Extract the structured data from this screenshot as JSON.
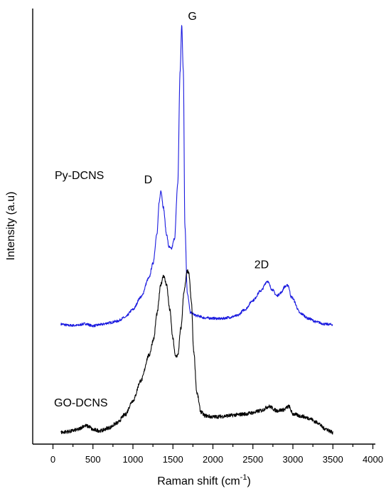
{
  "chart_data": {
    "type": "line",
    "title": "",
    "xlabel": "Raman shift (cm",
    "xlabel_superscript": "-1",
    "xlabel_suffix": ")",
    "ylabel": "Intensity (a.u)",
    "xlim": [
      -250,
      4000
    ],
    "x_ticks": [
      "0",
      "500",
      "1000",
      "1500",
      "2000",
      "2500",
      "3000",
      "3500",
      "4000"
    ],
    "y_ticks_shown": false,
    "grid": false,
    "legend": "none",
    "series": [
      {
        "name": "Py-DCNS",
        "color": "#1a1adf",
        "points": [
          [
            100,
            0.265
          ],
          [
            200,
            0.262
          ],
          [
            300,
            0.262
          ],
          [
            400,
            0.266
          ],
          [
            500,
            0.261
          ],
          [
            600,
            0.264
          ],
          [
            700,
            0.268
          ],
          [
            800,
            0.272
          ],
          [
            900,
            0.281
          ],
          [
            1000,
            0.3
          ],
          [
            1100,
            0.33
          ],
          [
            1200,
            0.375
          ],
          [
            1250,
            0.41
          ],
          [
            1300,
            0.48
          ],
          [
            1330,
            0.56
          ],
          [
            1350,
            0.585
          ],
          [
            1380,
            0.545
          ],
          [
            1420,
            0.48
          ],
          [
            1450,
            0.45
          ],
          [
            1480,
            0.445
          ],
          [
            1520,
            0.47
          ],
          [
            1560,
            0.6
          ],
          [
            1590,
            0.87
          ],
          [
            1610,
            0.98
          ],
          [
            1630,
            0.87
          ],
          [
            1650,
            0.5
          ],
          [
            1680,
            0.34
          ],
          [
            1720,
            0.292
          ],
          [
            1800,
            0.285
          ],
          [
            1900,
            0.28
          ],
          [
            2000,
            0.279
          ],
          [
            2100,
            0.278
          ],
          [
            2200,
            0.281
          ],
          [
            2300,
            0.285
          ],
          [
            2400,
            0.3
          ],
          [
            2500,
            0.322
          ],
          [
            2600,
            0.345
          ],
          [
            2680,
            0.368
          ],
          [
            2740,
            0.348
          ],
          [
            2800,
            0.333
          ],
          [
            2850,
            0.34
          ],
          [
            2900,
            0.355
          ],
          [
            2940,
            0.358
          ],
          [
            2980,
            0.33
          ],
          [
            3100,
            0.29
          ],
          [
            3200,
            0.278
          ],
          [
            3300,
            0.27
          ],
          [
            3400,
            0.265
          ],
          [
            3500,
            0.264
          ]
        ]
      },
      {
        "name": "GO-DCNS",
        "color": "#000000",
        "points": [
          [
            100,
            0.006
          ],
          [
            200,
            0.008
          ],
          [
            300,
            0.012
          ],
          [
            400,
            0.022
          ],
          [
            450,
            0.02
          ],
          [
            500,
            0.012
          ],
          [
            600,
            0.01
          ],
          [
            700,
            0.017
          ],
          [
            800,
            0.028
          ],
          [
            900,
            0.048
          ],
          [
            1000,
            0.082
          ],
          [
            1100,
            0.13
          ],
          [
            1200,
            0.19
          ],
          [
            1260,
            0.23
          ],
          [
            1300,
            0.29
          ],
          [
            1350,
            0.36
          ],
          [
            1380,
            0.382
          ],
          [
            1420,
            0.36
          ],
          [
            1460,
            0.3
          ],
          [
            1500,
            0.23
          ],
          [
            1530,
            0.188
          ],
          [
            1560,
            0.19
          ],
          [
            1600,
            0.255
          ],
          [
            1640,
            0.345
          ],
          [
            1680,
            0.392
          ],
          [
            1700,
            0.385
          ],
          [
            1730,
            0.32
          ],
          [
            1760,
            0.2
          ],
          [
            1800,
            0.1
          ],
          [
            1850,
            0.055
          ],
          [
            1900,
            0.046
          ],
          [
            2000,
            0.043
          ],
          [
            2100,
            0.044
          ],
          [
            2200,
            0.046
          ],
          [
            2300,
            0.048
          ],
          [
            2400,
            0.05
          ],
          [
            2500,
            0.053
          ],
          [
            2600,
            0.058
          ],
          [
            2700,
            0.068
          ],
          [
            2800,
            0.058
          ],
          [
            2880,
            0.06
          ],
          [
            2950,
            0.068
          ],
          [
            3000,
            0.05
          ],
          [
            3100,
            0.045
          ],
          [
            3200,
            0.04
          ],
          [
            3300,
            0.03
          ],
          [
            3400,
            0.015
          ],
          [
            3500,
            0.006
          ]
        ]
      }
    ],
    "series_labels": [
      {
        "text": "Py-DCNS"
      },
      {
        "text": "GO-DCNS"
      }
    ],
    "annotations": [
      {
        "text": "D",
        "x": 1350,
        "series": "Py-DCNS"
      },
      {
        "text": "G",
        "x": 1610,
        "series": "Py-DCNS"
      },
      {
        "text": "2D",
        "x": 2680,
        "series": "Py-DCNS"
      }
    ]
  }
}
